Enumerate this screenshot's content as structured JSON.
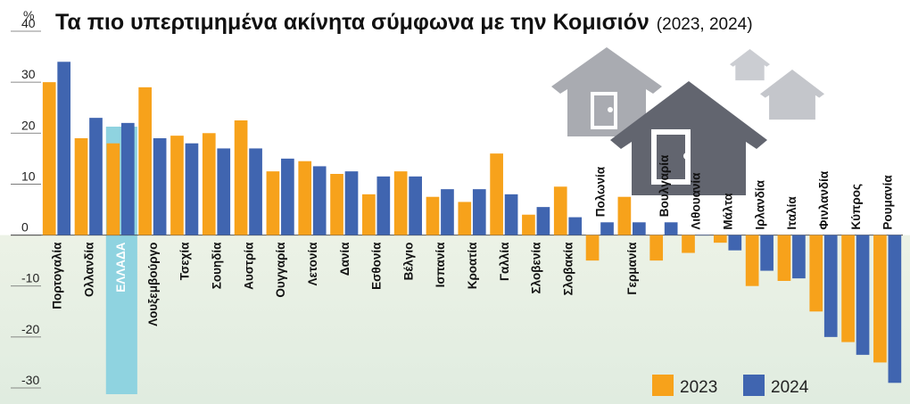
{
  "chart_data": {
    "type": "bar",
    "title": "Τα πιο υπερτιμημένα ακίνητα σύμφωνα με την Κομισιόν",
    "title_years": "(2023, 2024)",
    "unit_label": "%",
    "ylim": [
      -30,
      40
    ],
    "yticks": [
      40,
      30,
      20,
      10,
      0,
      -10,
      -20,
      -30
    ],
    "highlight_category": "ΕΛΛΑΔΑ",
    "categories": [
      "Πορτογαλία",
      "Ολλανδία",
      "ΕΛΛΑΔΑ",
      "Λουξεμβούργο",
      "Τσεχία",
      "Σουηδία",
      "Αυστρία",
      "Ουγγαρία",
      "Λετονία",
      "Δανία",
      "Εσθονία",
      "Βέλγιο",
      "Ισπανία",
      "Κροατία",
      "Γαλλία",
      "Σλοβενία",
      "Σλοβακία",
      "Πολωνία",
      "Γερμανία",
      "Βουλγαρία",
      "Λιθουανία",
      "Μάλτα",
      "Ιρλανδία",
      "Ιταλία",
      "Φινλανδία",
      "Κύπρος",
      "Ρουμανία"
    ],
    "series": [
      {
        "name": "2023",
        "color": "#f7a21b",
        "values": [
          30,
          19,
          18,
          29,
          19.5,
          20,
          22.5,
          12.5,
          14.5,
          12,
          8,
          12.5,
          7.5,
          6.5,
          16,
          4,
          9.5,
          -5,
          7.5,
          -5,
          -3.5,
          -1.5,
          -10,
          -9,
          -15,
          -21,
          -25
        ]
      },
      {
        "name": "2024",
        "color": "#4065b0",
        "values": [
          34,
          23,
          22,
          19,
          18,
          17,
          17,
          15,
          13.5,
          12.5,
          11.5,
          11.5,
          9,
          9,
          8,
          5.5,
          3.5,
          2.5,
          2.5,
          2.5,
          0,
          -3,
          -7,
          -8.5,
          -20,
          -23.5,
          -29
        ]
      }
    ],
    "colors": {
      "positive_bg": "#ffffff",
      "negative_bg": "#e9f0e2",
      "grid": "#7a7a7a",
      "highlight": "#8fd3e0",
      "house_dark": "#62656f",
      "house_mid": "#a9abb1",
      "house_light": "#cbcdd2"
    },
    "icons": [
      "house-icon"
    ]
  }
}
